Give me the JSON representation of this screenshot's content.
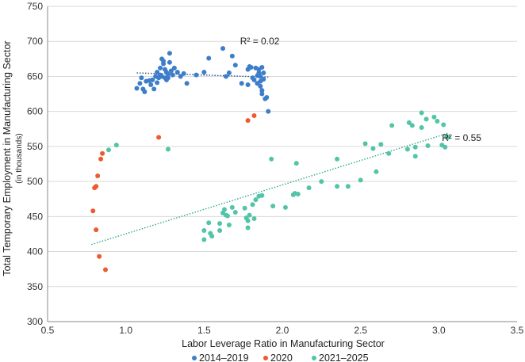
{
  "chart_data": {
    "type": "scatter",
    "title": "",
    "xlabel": "Labor Leverage Ratio in Manufacturing Sector",
    "ylabel": "Total Temporary Employment in Manufacturing Sector",
    "ylabel_sub": "(in thousands)",
    "xlim": [
      0.5,
      3.5
    ],
    "ylim": [
      300,
      750
    ],
    "x_ticks": [
      0.5,
      1.0,
      1.5,
      2.0,
      2.5,
      3.0,
      3.5
    ],
    "x_tick_labels": [
      "0.5",
      "1.0",
      "1.5",
      "2.0",
      "2.5",
      "3.0",
      "3.5"
    ],
    "y_ticks": [
      300,
      350,
      400,
      450,
      500,
      550,
      600,
      650,
      700,
      750
    ],
    "y_tick_labels": [
      "300",
      "350",
      "400",
      "450",
      "500",
      "550",
      "600",
      "650",
      "700",
      "750"
    ],
    "grid": "horizontal",
    "legend_position": "bottom",
    "series": [
      {
        "name": "2014–2019",
        "color": "#3d7dca",
        "points": [
          [
            1.07,
            633
          ],
          [
            1.09,
            640
          ],
          [
            1.1,
            648
          ],
          [
            1.11,
            632
          ],
          [
            1.12,
            628
          ],
          [
            1.13,
            643
          ],
          [
            1.15,
            644
          ],
          [
            1.16,
            638
          ],
          [
            1.17,
            645
          ],
          [
            1.18,
            632
          ],
          [
            1.19,
            650
          ],
          [
            1.2,
            656
          ],
          [
            1.2,
            641
          ],
          [
            1.21,
            648
          ],
          [
            1.22,
            652
          ],
          [
            1.22,
            662
          ],
          [
            1.23,
            675
          ],
          [
            1.23,
            650
          ],
          [
            1.24,
            672
          ],
          [
            1.24,
            668
          ],
          [
            1.25,
            660
          ],
          [
            1.25,
            648
          ],
          [
            1.26,
            656
          ],
          [
            1.26,
            645
          ],
          [
            1.27,
            653
          ],
          [
            1.27,
            648
          ],
          [
            1.28,
            683
          ],
          [
            1.28,
            670
          ],
          [
            1.29,
            658
          ],
          [
            1.3,
            652
          ],
          [
            1.31,
            662
          ],
          [
            1.33,
            656
          ],
          [
            1.35,
            650
          ],
          [
            1.37,
            654
          ],
          [
            1.39,
            640
          ],
          [
            1.45,
            652
          ],
          [
            1.5,
            656
          ],
          [
            1.53,
            676
          ],
          [
            1.62,
            690
          ],
          [
            1.64,
            650
          ],
          [
            1.66,
            655
          ],
          [
            1.68,
            679
          ],
          [
            1.7,
            666
          ],
          [
            1.74,
            640
          ],
          [
            1.78,
            660
          ],
          [
            1.78,
            638
          ],
          [
            1.79,
            664
          ],
          [
            1.8,
            663
          ],
          [
            1.81,
            648
          ],
          [
            1.82,
            645
          ],
          [
            1.83,
            662
          ],
          [
            1.84,
            651
          ],
          [
            1.84,
            640
          ],
          [
            1.85,
            660
          ],
          [
            1.85,
            655
          ],
          [
            1.86,
            650
          ],
          [
            1.86,
            643
          ],
          [
            1.87,
            663
          ],
          [
            1.87,
            630
          ],
          [
            1.87,
            625
          ],
          [
            1.88,
            655
          ],
          [
            1.88,
            646
          ],
          [
            1.89,
            618
          ],
          [
            1.9,
            620
          ],
          [
            1.91,
            600
          ],
          [
            1.86,
            636
          ]
        ]
      },
      {
        "name": "2020",
        "color": "#ee5a30",
        "points": [
          [
            0.79,
            458
          ],
          [
            0.8,
            491
          ],
          [
            0.81,
            493
          ],
          [
            0.81,
            431
          ],
          [
            0.82,
            508
          ],
          [
            0.83,
            393
          ],
          [
            0.84,
            532
          ],
          [
            0.85,
            540
          ],
          [
            0.87,
            374
          ],
          [
            1.21,
            563
          ],
          [
            1.78,
            587
          ],
          [
            1.82,
            594
          ]
        ]
      },
      {
        "name": "2021–2025",
        "color": "#52c4a8",
        "points": [
          [
            0.89,
            545
          ],
          [
            0.94,
            552
          ],
          [
            1.27,
            546
          ],
          [
            1.5,
            430
          ],
          [
            1.5,
            417
          ],
          [
            1.53,
            441
          ],
          [
            1.54,
            426
          ],
          [
            1.55,
            422
          ],
          [
            1.6,
            440
          ],
          [
            1.6,
            430
          ],
          [
            1.62,
            455
          ],
          [
            1.63,
            460
          ],
          [
            1.64,
            452
          ],
          [
            1.65,
            451
          ],
          [
            1.66,
            438
          ],
          [
            1.68,
            463
          ],
          [
            1.7,
            456
          ],
          [
            1.76,
            462
          ],
          [
            1.77,
            448
          ],
          [
            1.78,
            434
          ],
          [
            1.78,
            444
          ],
          [
            1.79,
            452
          ],
          [
            1.81,
            467
          ],
          [
            1.82,
            447
          ],
          [
            1.83,
            474
          ],
          [
            1.85,
            479
          ],
          [
            1.87,
            480
          ],
          [
            1.93,
            532
          ],
          [
            1.94,
            465
          ],
          [
            2.02,
            463
          ],
          [
            2.07,
            481
          ],
          [
            2.08,
            483
          ],
          [
            2.09,
            526
          ],
          [
            2.1,
            482
          ],
          [
            2.17,
            491
          ],
          [
            2.25,
            500
          ],
          [
            2.35,
            532
          ],
          [
            2.35,
            493
          ],
          [
            2.42,
            493
          ],
          [
            2.5,
            502
          ],
          [
            2.53,
            554
          ],
          [
            2.58,
            547
          ],
          [
            2.6,
            514
          ],
          [
            2.63,
            553
          ],
          [
            2.68,
            540
          ],
          [
            2.7,
            580
          ],
          [
            2.8,
            546
          ],
          [
            2.81,
            584
          ],
          [
            2.83,
            580
          ],
          [
            2.85,
            549
          ],
          [
            2.85,
            536
          ],
          [
            2.89,
            577
          ],
          [
            2.89,
            598
          ],
          [
            2.92,
            589
          ],
          [
            2.93,
            551
          ],
          [
            2.97,
            592
          ],
          [
            2.99,
            586
          ],
          [
            3.02,
            552
          ],
          [
            3.03,
            581
          ],
          [
            3.04,
            549
          ],
          [
            3.05,
            564
          ],
          [
            3.06,
            563
          ]
        ]
      }
    ],
    "trendlines": [
      {
        "series": "2014–2019",
        "color": "#1f4f8f",
        "x": [
          1.07,
          1.91
        ],
        "y": [
          655,
          649
        ]
      },
      {
        "series": "2021–2025",
        "color": "#2fa888",
        "x": [
          0.78,
          3.06
        ],
        "y": [
          410,
          569
        ]
      }
    ],
    "annotations": [
      {
        "text": "R² = 0.02",
        "x": 1.73,
        "y": 696
      },
      {
        "text": "R² = 0.55",
        "x": 3.02,
        "y": 558
      }
    ]
  }
}
